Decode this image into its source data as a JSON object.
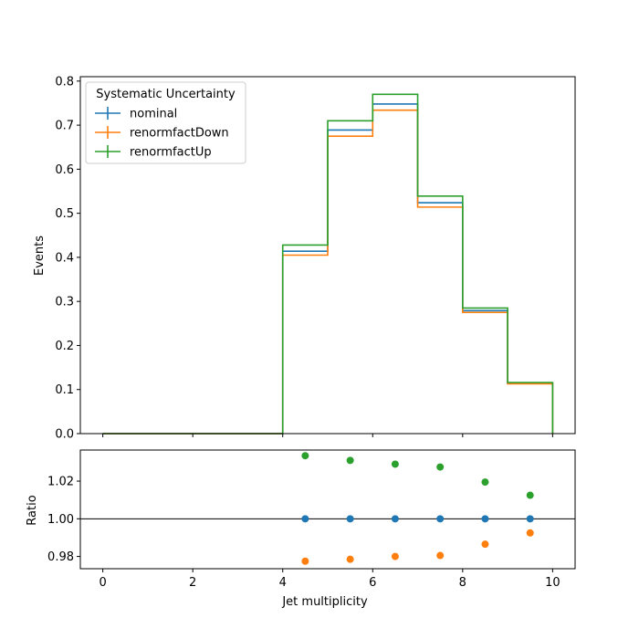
{
  "chart_data": [
    {
      "type": "line",
      "step": "histogram",
      "xlabel": "",
      "ylabel": "Events",
      "xlim": [
        -0.5,
        10.5
      ],
      "ylim": [
        0,
        0.81
      ],
      "yticks": [
        0.0,
        0.1,
        0.2,
        0.3,
        0.4,
        0.5,
        0.6,
        0.7,
        0.8
      ],
      "ytick_labels": [
        "0.0",
        "0.1",
        "0.2",
        "0.3",
        "0.4",
        "0.5",
        "0.6",
        "0.7",
        "0.8"
      ],
      "bin_edges": [
        0,
        1,
        2,
        3,
        4,
        5,
        6,
        7,
        8,
        9,
        10
      ],
      "legend": {
        "title": "Systematic Uncertainty",
        "placement": "upper-left"
      },
      "series": [
        {
          "name": "nominal",
          "color": "#1f77b4",
          "values": [
            0,
            0,
            0,
            0,
            0.414,
            0.689,
            0.748,
            0.524,
            0.279,
            0.114
          ]
        },
        {
          "name": "renormfactDown",
          "color": "#ff7f0e",
          "values": [
            0,
            0,
            0,
            0,
            0.405,
            0.675,
            0.734,
            0.514,
            0.275,
            0.113
          ]
        },
        {
          "name": "renormfactUp",
          "color": "#2ca02c",
          "values": [
            0,
            0,
            0,
            0,
            0.428,
            0.71,
            0.77,
            0.539,
            0.285,
            0.116
          ]
        }
      ]
    },
    {
      "type": "scatter",
      "xlabel": "Jet multiplicity",
      "ylabel": "Ratio",
      "xlim": [
        -0.5,
        10.5
      ],
      "ylim": [
        0.9735,
        1.0365
      ],
      "xticks": [
        0,
        2,
        4,
        6,
        8,
        10
      ],
      "xtick_labels": [
        "0",
        "2",
        "4",
        "6",
        "8",
        "10"
      ],
      "yticks": [
        0.98,
        1.0,
        1.02
      ],
      "ytick_labels": [
        "0.98",
        "1.00",
        "1.02"
      ],
      "reference_line": 1.0,
      "x": [
        4.5,
        5.5,
        6.5,
        7.5,
        8.5,
        9.5
      ],
      "series": [
        {
          "name": "nominal",
          "color": "#1f77b4",
          "values": [
            1.0,
            1.0,
            1.0,
            1.0,
            1.0,
            1.0
          ]
        },
        {
          "name": "renormfactDown",
          "color": "#ff7f0e",
          "values": [
            0.9775,
            0.9785,
            0.98,
            0.9805,
            0.9865,
            0.9925
          ]
        },
        {
          "name": "renormfactUp",
          "color": "#2ca02c",
          "values": [
            1.0335,
            1.031,
            1.029,
            1.0275,
            1.0195,
            1.0125
          ]
        }
      ]
    }
  ]
}
